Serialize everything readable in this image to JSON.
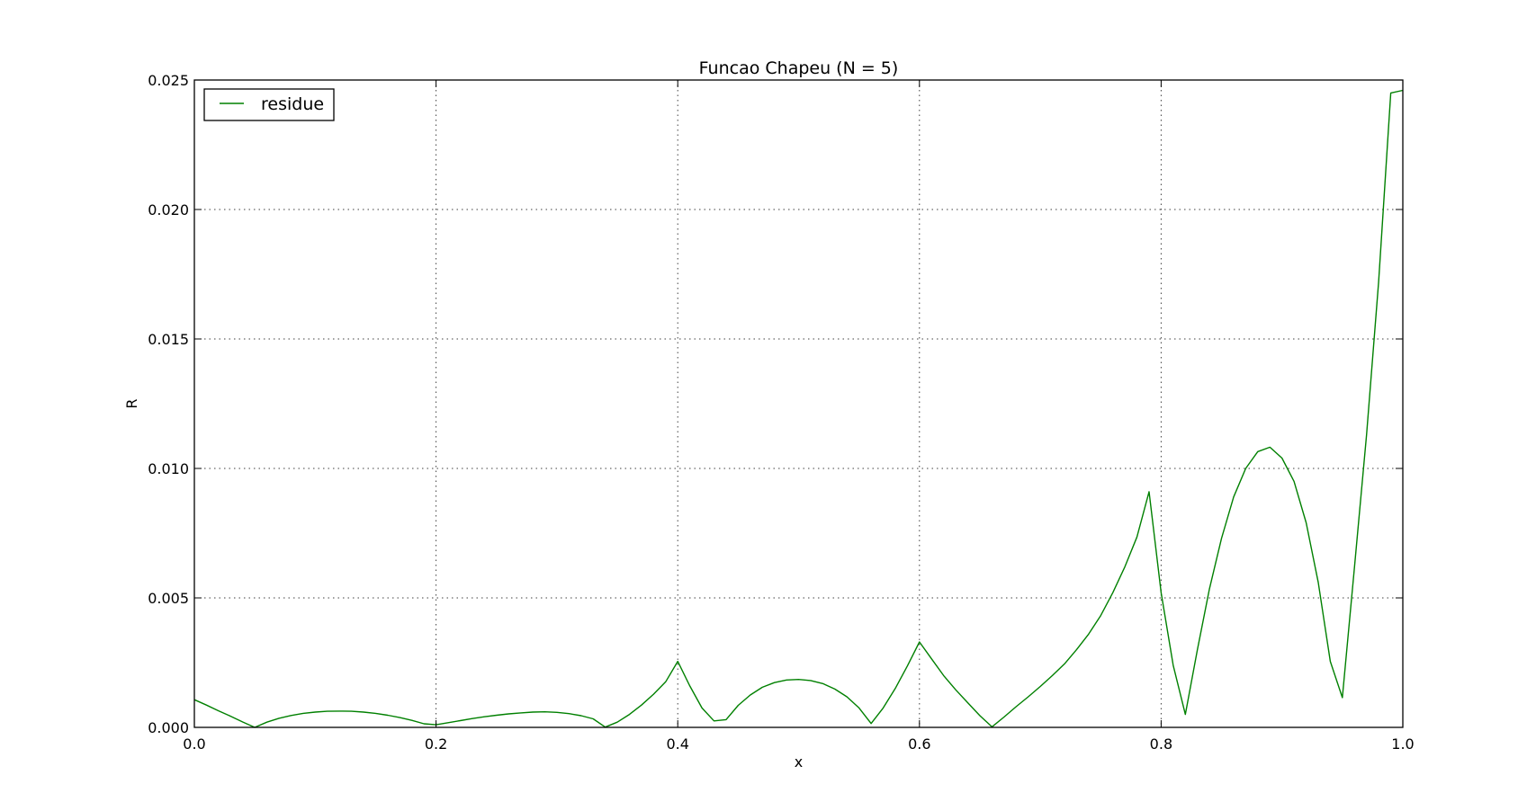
{
  "chart_data": {
    "type": "line",
    "title": "Funcao Chapeu (N = 5)",
    "xlabel": "x",
    "ylabel": "R",
    "xlim": [
      0.0,
      1.0
    ],
    "ylim": [
      0.0,
      0.025
    ],
    "x_ticks": [
      0.0,
      0.2,
      0.4,
      0.6,
      0.8,
      1.0
    ],
    "x_tick_labels": [
      "0.0",
      "0.2",
      "0.4",
      "0.6",
      "0.8",
      "1.0"
    ],
    "y_ticks": [
      0.0,
      0.005,
      0.01,
      0.015,
      0.02,
      0.025
    ],
    "y_tick_labels": [
      "0.000",
      "0.005",
      "0.010",
      "0.015",
      "0.020",
      "0.025"
    ],
    "grid": true,
    "legend_position": "top-left",
    "series": [
      {
        "name": "residue",
        "color": "#008000",
        "x": [
          0.0,
          0.01,
          0.02,
          0.03,
          0.04,
          0.05,
          0.06,
          0.07,
          0.08,
          0.09,
          0.1,
          0.11,
          0.12,
          0.13,
          0.14,
          0.15,
          0.16,
          0.17,
          0.18,
          0.19,
          0.2,
          0.21,
          0.22,
          0.23,
          0.24,
          0.25,
          0.26,
          0.27,
          0.28,
          0.29,
          0.3,
          0.31,
          0.32,
          0.33,
          0.34,
          0.35,
          0.36,
          0.37,
          0.38,
          0.39,
          0.4,
          0.41,
          0.42,
          0.43,
          0.44,
          0.45,
          0.46,
          0.47,
          0.48,
          0.49,
          0.5,
          0.51,
          0.52,
          0.53,
          0.54,
          0.55,
          0.56,
          0.57,
          0.58,
          0.59,
          0.6,
          0.61,
          0.62,
          0.63,
          0.64,
          0.65,
          0.66,
          0.67,
          0.68,
          0.69,
          0.7,
          0.71,
          0.72,
          0.73,
          0.74,
          0.75,
          0.76,
          0.77,
          0.78,
          0.79,
          0.8,
          0.81,
          0.82,
          0.83,
          0.84,
          0.85,
          0.86,
          0.87,
          0.88,
          0.89,
          0.9,
          0.91,
          0.92,
          0.93,
          0.94,
          0.95,
          0.96,
          0.97,
          0.98,
          0.99,
          1.0
        ],
        "values": [
          0.00107,
          0.00086,
          0.00064,
          0.00043,
          0.00021,
          0.0,
          0.0002,
          0.00035,
          0.00046,
          0.00054,
          0.00059,
          0.00062,
          0.00063,
          0.00062,
          0.00059,
          0.00054,
          0.00047,
          0.00038,
          0.00027,
          0.00014,
          0.0001,
          0.00018,
          0.00026,
          0.00034,
          0.00041,
          0.00047,
          0.00052,
          0.00056,
          0.00059,
          0.0006,
          0.00058,
          0.00053,
          0.00045,
          0.00033,
          1e-05,
          0.0002,
          0.0005,
          0.00086,
          0.00128,
          0.00176,
          0.00255,
          0.0016,
          0.00075,
          0.00025,
          0.0003,
          0.00085,
          0.00125,
          0.00155,
          0.00173,
          0.00183,
          0.00185,
          0.00181,
          0.00169,
          0.00148,
          0.00118,
          0.00075,
          0.00015,
          0.00075,
          0.0015,
          0.00237,
          0.0033,
          0.00265,
          0.002,
          0.00145,
          0.00095,
          0.00045,
          2e-05,
          0.0004,
          0.0008,
          0.00118,
          0.00158,
          0.002,
          0.00245,
          0.003,
          0.0036,
          0.00432,
          0.0052,
          0.0062,
          0.00735,
          0.0091,
          0.0052,
          0.0024,
          0.0005,
          0.003,
          0.00535,
          0.0073,
          0.0089,
          0.01,
          0.01065,
          0.01082,
          0.0104,
          0.0095,
          0.0079,
          0.0056,
          0.00255,
          0.00115,
          0.0062,
          0.0113,
          0.0172,
          0.0245,
          0.0246
        ]
      }
    ]
  }
}
